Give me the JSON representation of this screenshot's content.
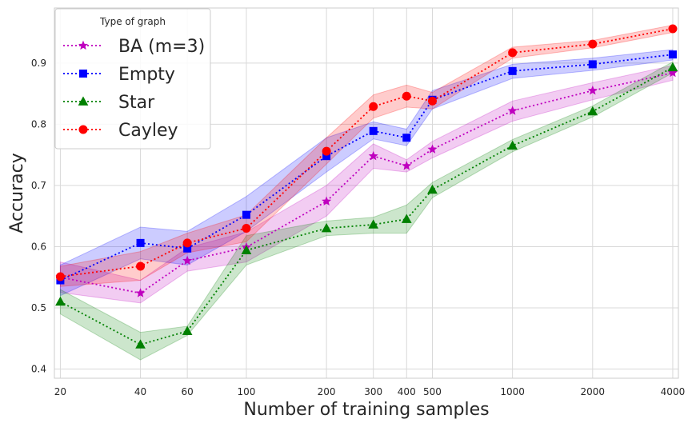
{
  "chart_data": {
    "type": "line",
    "title": "",
    "xlabel": "Number of training samples",
    "ylabel": "Accuracy",
    "xscale": "log",
    "xlim": [
      19,
      4200
    ],
    "ylim": [
      0.385,
      0.99
    ],
    "x_ticks": [
      20,
      40,
      60,
      100,
      200,
      300,
      400,
      500,
      1000,
      2000,
      4000
    ],
    "x_tick_labels": [
      "20",
      "40",
      "60",
      "100",
      "200",
      "300",
      "400",
      "500",
      "1000",
      "2000",
      "4000"
    ],
    "y_ticks": [
      0.4,
      0.5,
      0.6,
      0.7,
      0.8,
      0.9
    ],
    "y_tick_labels": [
      "0.4",
      "0.5",
      "0.6",
      "0.7",
      "0.8",
      "0.9"
    ],
    "grid": true,
    "legend": {
      "title": "Type of graph",
      "location": "top-left"
    },
    "x": [
      20,
      40,
      60,
      100,
      200,
      300,
      400,
      500,
      1000,
      2000,
      4000
    ],
    "series": [
      {
        "name": "BA (m=3)",
        "color": "#bf00bf",
        "marker": "star",
        "values": [
          0.55,
          0.524,
          0.577,
          0.599,
          0.674,
          0.748,
          0.732,
          0.759,
          0.822,
          0.855,
          0.884
        ],
        "lower": [
          0.525,
          0.508,
          0.56,
          0.575,
          0.65,
          0.728,
          0.722,
          0.745,
          0.805,
          0.84,
          0.872
        ],
        "upper": [
          0.575,
          0.545,
          0.598,
          0.624,
          0.7,
          0.768,
          0.742,
          0.772,
          0.838,
          0.868,
          0.896
        ]
      },
      {
        "name": "Empty",
        "color": "#0000ff",
        "marker": "square",
        "values": [
          0.545,
          0.606,
          0.597,
          0.652,
          0.748,
          0.789,
          0.778,
          0.84,
          0.887,
          0.898,
          0.914
        ],
        "lower": [
          0.52,
          0.58,
          0.57,
          0.625,
          0.722,
          0.776,
          0.765,
          0.825,
          0.875,
          0.888,
          0.905
        ],
        "upper": [
          0.57,
          0.632,
          0.625,
          0.682,
          0.778,
          0.804,
          0.792,
          0.855,
          0.898,
          0.908,
          0.922
        ]
      },
      {
        "name": "Star",
        "color": "#008000",
        "marker": "triangle",
        "values": [
          0.51,
          0.44,
          0.462,
          0.594,
          0.63,
          0.636,
          0.645,
          0.693,
          0.765,
          0.821,
          0.893
        ],
        "lower": [
          0.49,
          0.415,
          0.455,
          0.57,
          0.618,
          0.622,
          0.622,
          0.68,
          0.755,
          0.812,
          0.884
        ],
        "upper": [
          0.53,
          0.46,
          0.47,
          0.618,
          0.642,
          0.648,
          0.668,
          0.705,
          0.775,
          0.83,
          0.902
        ]
      },
      {
        "name": "Cayley",
        "color": "#ff0000",
        "marker": "circle",
        "values": [
          0.551,
          0.568,
          0.606,
          0.63,
          0.756,
          0.829,
          0.846,
          0.838,
          0.917,
          0.931,
          0.956
        ],
        "lower": [
          0.535,
          0.545,
          0.59,
          0.608,
          0.735,
          0.81,
          0.828,
          0.825,
          0.908,
          0.925,
          0.95
        ],
        "upper": [
          0.568,
          0.592,
          0.622,
          0.652,
          0.778,
          0.848,
          0.864,
          0.852,
          0.926,
          0.937,
          0.962
        ]
      }
    ]
  }
}
